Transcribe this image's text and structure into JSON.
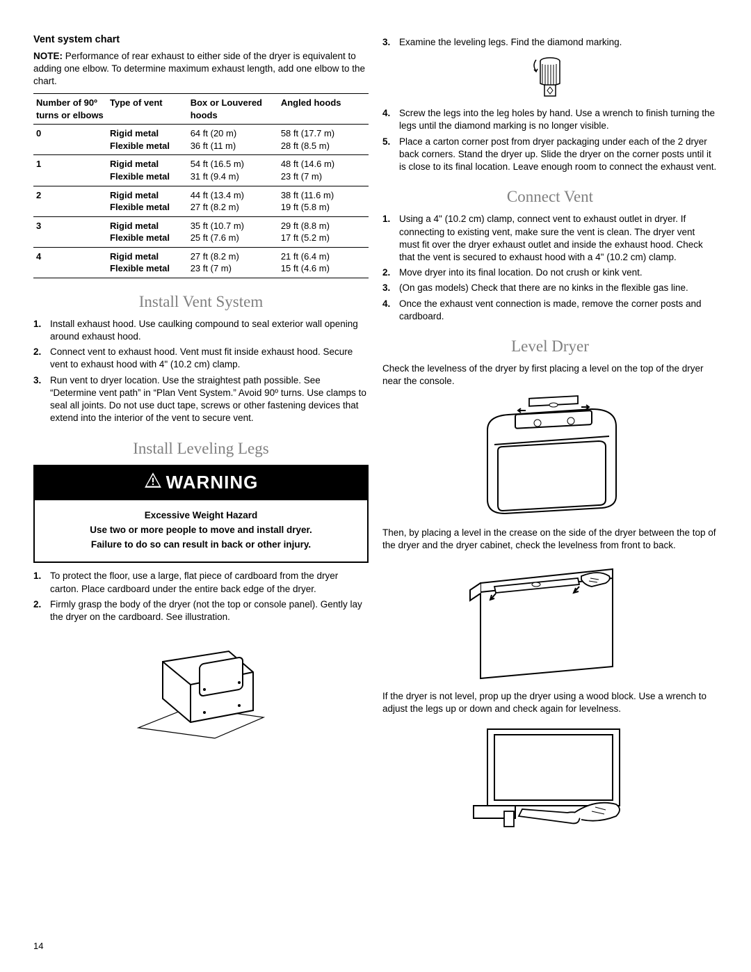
{
  "page_number": "14",
  "left": {
    "chart_title": "Vent system chart",
    "note_label": "NOTE:",
    "note_text": " Performance of rear exhaust to either side of the dryer is equivalent to adding one elbow. To determine maximum exhaust length, add one elbow to the chart.",
    "table": {
      "headers": [
        "Number of 90º turns or elbows",
        "Type of vent",
        "Box or Louvered hoods",
        "Angled hoods"
      ],
      "rows": [
        {
          "n": "0",
          "t1": "Rigid metal",
          "t2": "Flexible metal",
          "b1": "64 ft (20 m)",
          "b2": "36 ft (11 m)",
          "a1": "58 ft (17.7 m)",
          "a2": "28 ft (8.5 m)"
        },
        {
          "n": "1",
          "t1": "Rigid metal",
          "t2": "Flexible metal",
          "b1": "54 ft (16.5 m)",
          "b2": "31 ft (9.4 m)",
          "a1": "48 ft (14.6 m)",
          "a2": "23 ft (7 m)"
        },
        {
          "n": "2",
          "t1": "Rigid metal",
          "t2": "Flexible metal",
          "b1": "44 ft (13.4 m)",
          "b2": "27 ft (8.2 m)",
          "a1": "38 ft (11.6 m)",
          "a2": "19 ft (5.8 m)"
        },
        {
          "n": "3",
          "t1": "Rigid metal",
          "t2": "Flexible metal",
          "b1": "35 ft (10.7 m)",
          "b2": "25 ft (7.6 m)",
          "a1": "29 ft (8.8 m)",
          "a2": "17 ft (5.2 m)"
        },
        {
          "n": "4",
          "t1": "Rigid metal",
          "t2": "Flexible metal",
          "b1": "27 ft (8.2 m)",
          "b2": "23 ft (7 m)",
          "a1": "21 ft (6.4 m)",
          "a2": "15 ft (4.6 m)"
        }
      ]
    },
    "install_vent_heading": "Install Vent System",
    "install_vent_steps": [
      "Install exhaust hood. Use caulking compound to seal exterior wall opening around exhaust hood.",
      "Connect vent to exhaust hood. Vent must fit inside exhaust hood. Secure vent to exhaust hood with 4\" (10.2 cm) clamp.",
      "Run vent to dryer location. Use the straightest path possible. See “Determine vent path” in “Plan Vent System.” Avoid 90º turns. Use clamps to seal all joints. Do not use duct tape, screws or other fastening devices that extend into the interior of the vent to secure vent."
    ],
    "leveling_heading": "Install Leveling Legs",
    "warning_label": "WARNING",
    "warning_body": [
      "Excessive Weight Hazard",
      "Use two or more people to move and install dryer.",
      "Failure to do so can result in back or other injury."
    ],
    "leveling_steps_a": [
      "To protect the floor, use a large, flat piece of cardboard from the dryer carton. Place cardboard under the entire back edge of the dryer.",
      "Firmly grasp the body of the dryer (not the top or console panel). Gently lay the dryer on the cardboard. See illustration."
    ]
  },
  "right": {
    "leveling_steps_b": [
      "Examine the leveling legs. Find the diamond marking.",
      "Screw the legs into the leg holes by hand. Use a wrench to finish turning the legs until the diamond marking is no longer visible.",
      "Place a carton corner post from dryer packaging under each of the 2 dryer back corners. Stand the dryer up. Slide the dryer on the corner posts until it is close to its final location. Leave enough room to connect the exhaust vent."
    ],
    "connect_heading": "Connect Vent",
    "connect_steps": [
      "Using a 4\" (10.2 cm) clamp, connect vent to exhaust outlet in dryer. If connecting to existing vent, make sure the vent is clean. The dryer vent must fit over the dryer exhaust outlet and inside the exhaust hood. Check that the vent is secured to exhaust hood with a 4\" (10.2 cm) clamp.",
      "Move dryer into its final location. Do not crush or kink vent.",
      "(On gas models) Check that there are no kinks in the flexible gas line.",
      "Once the exhaust vent connection is made, remove the corner posts and cardboard."
    ],
    "level_heading": "Level Dryer",
    "level_intro": "Check the levelness of the dryer by first placing a level on the top of the dryer near the console.",
    "level_mid": "Then, by placing a level in the crease on the side of the dryer between the top of the dryer and the dryer cabinet, check the levelness from front to back.",
    "level_outro": "If the dryer is not level, prop up the dryer using a wood block. Use a wrench to adjust the legs up or down and check again for levelness."
  }
}
